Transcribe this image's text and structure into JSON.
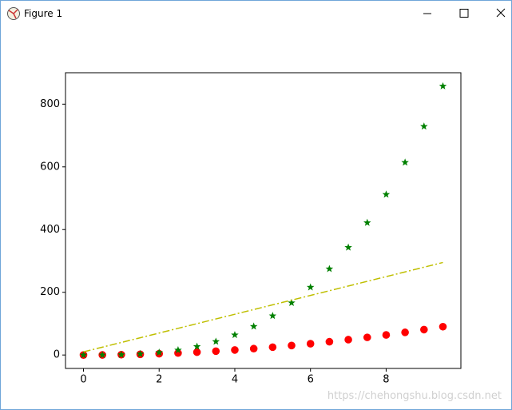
{
  "window": {
    "title": "Figure 1"
  },
  "watermark": "https://chehongshu.blog.csdn.net",
  "chart_data": {
    "type": "scatter",
    "x": [
      0,
      0.5,
      1,
      1.5,
      2,
      2.5,
      3,
      3.5,
      4,
      4.5,
      5,
      5.5,
      6,
      6.5,
      7,
      7.5,
      8,
      8.5,
      9,
      9.5
    ],
    "series": [
      {
        "color": "#ff0000",
        "marker": "circle",
        "values": [
          0,
          0.25,
          1,
          2.25,
          4,
          6.25,
          9,
          12.25,
          16,
          20.25,
          25,
          30.25,
          36,
          42.25,
          49,
          56.25,
          64,
          72.25,
          81,
          90.25
        ]
      },
      {
        "color": "#008000",
        "marker": "star",
        "values": [
          0,
          0.125,
          1,
          3.375,
          8,
          15.625,
          27,
          42.875,
          64,
          91.125,
          125,
          166.375,
          216,
          274.625,
          343,
          421.875,
          512,
          614.125,
          729,
          857.375
        ]
      },
      {
        "color": "#bfbf00",
        "marker": "none",
        "linestyle": "dashdot",
        "values": [
          10,
          25,
          40,
          55,
          70,
          85,
          100,
          115,
          130,
          145,
          160,
          175,
          190,
          205,
          220,
          235,
          250,
          265,
          280,
          295
        ]
      }
    ],
    "xlim": [
      -0.475,
      9.975
    ],
    "xticks": [
      0,
      2,
      4,
      6,
      8
    ],
    "ylim": [
      -42.87,
      900.24
    ],
    "yticks": [
      0,
      200,
      400,
      600,
      800
    ]
  }
}
